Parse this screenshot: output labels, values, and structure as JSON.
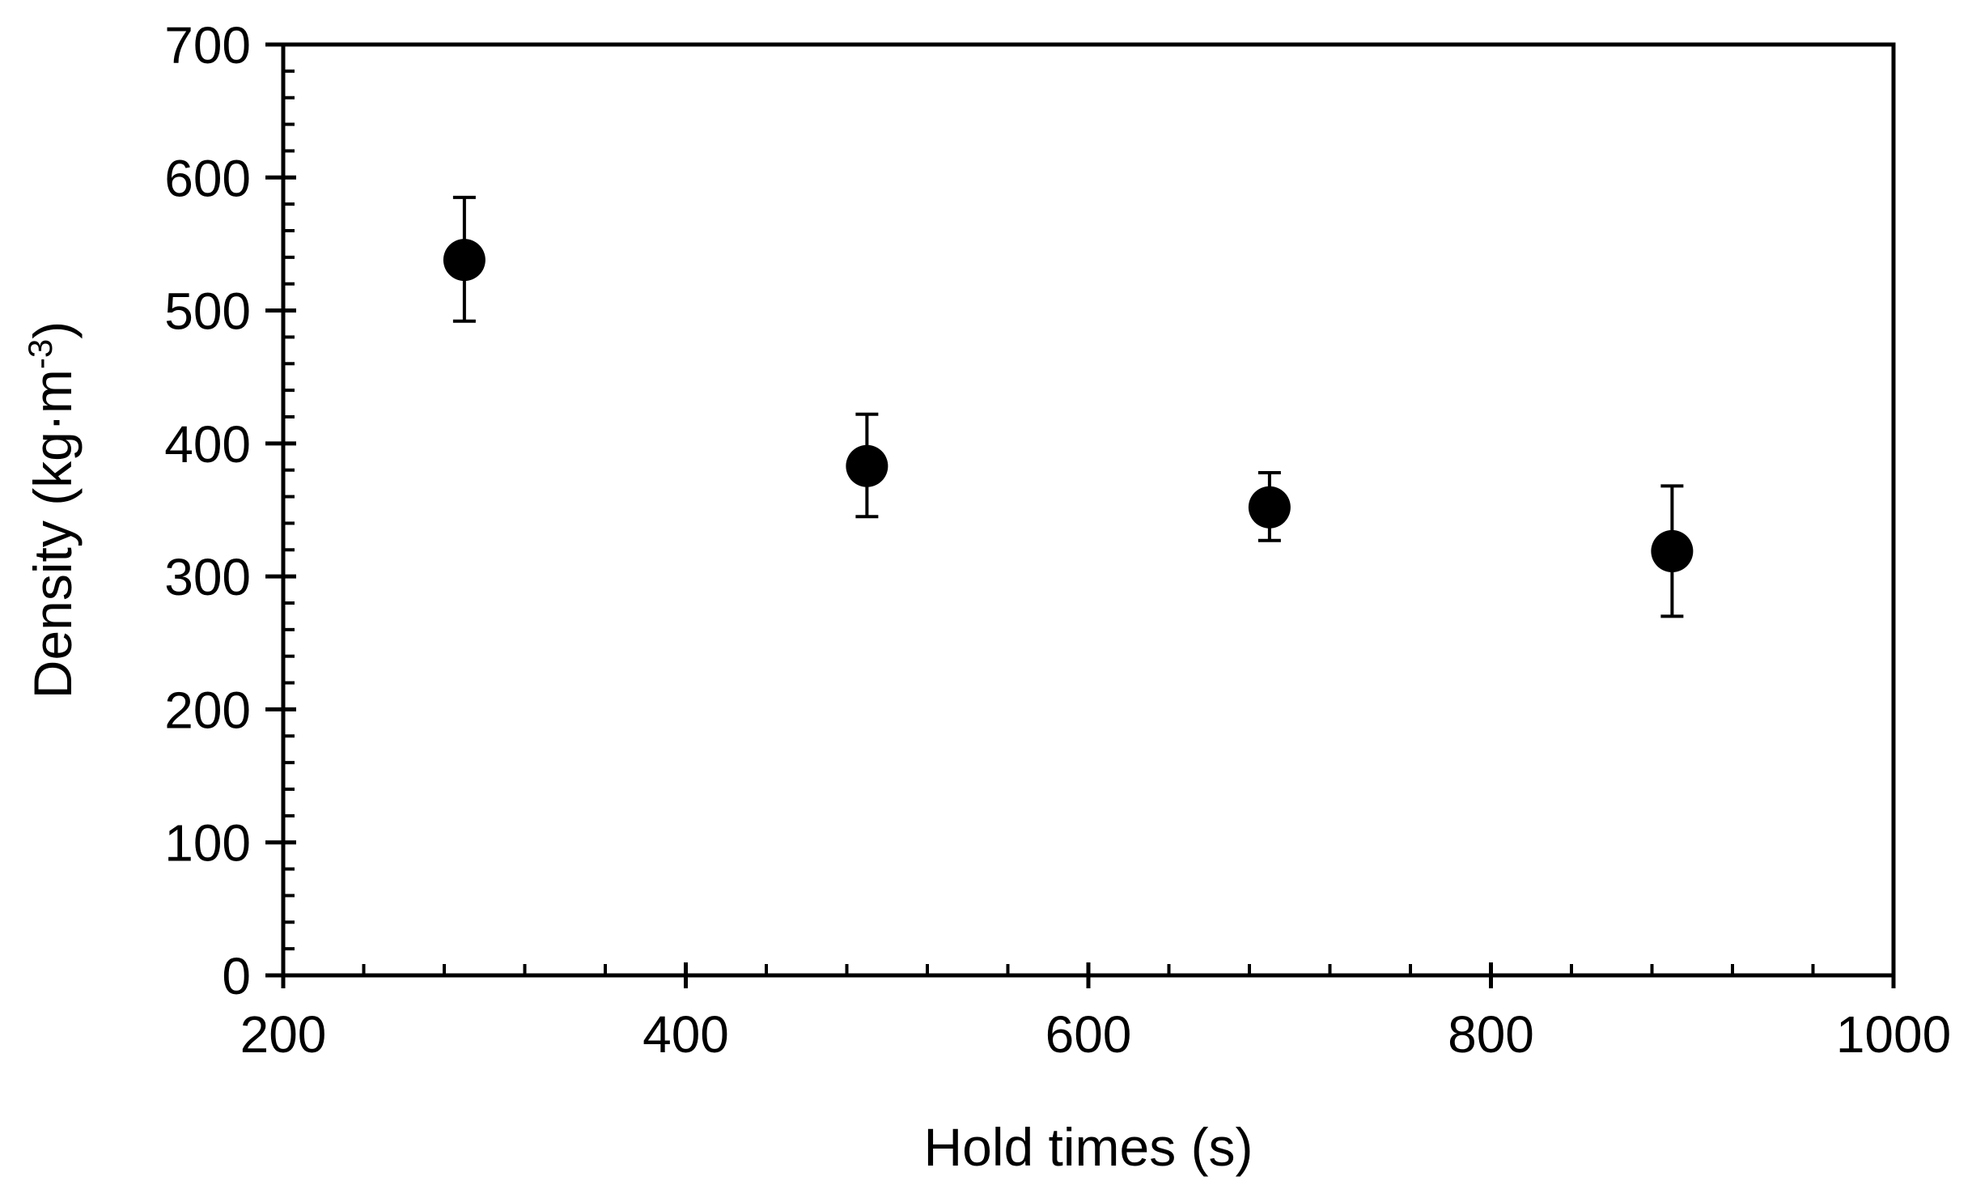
{
  "chart_data": {
    "type": "scatter",
    "xlabel": "Hold times (s)",
    "ylabel_main": "Density (kg·m",
    "ylabel_sup": "-3",
    "ylabel_close": ")",
    "xlim": [
      200,
      1000
    ],
    "ylim": [
      0,
      700
    ],
    "x_ticks": [
      200,
      400,
      600,
      800,
      1000
    ],
    "y_ticks": [
      0,
      100,
      200,
      300,
      400,
      500,
      600,
      700
    ],
    "x_minor_step": 40,
    "y_minor_step": 20,
    "grid": false,
    "legend": "none",
    "marker_color": "#000000",
    "points": [
      {
        "x": 290,
        "y": 538,
        "err_low": 492,
        "err_high": 585
      },
      {
        "x": 490,
        "y": 383,
        "err_low": 345,
        "err_high": 422
      },
      {
        "x": 690,
        "y": 352,
        "err_low": 327,
        "err_high": 378
      },
      {
        "x": 890,
        "y": 319,
        "err_low": 270,
        "err_high": 368
      }
    ]
  }
}
